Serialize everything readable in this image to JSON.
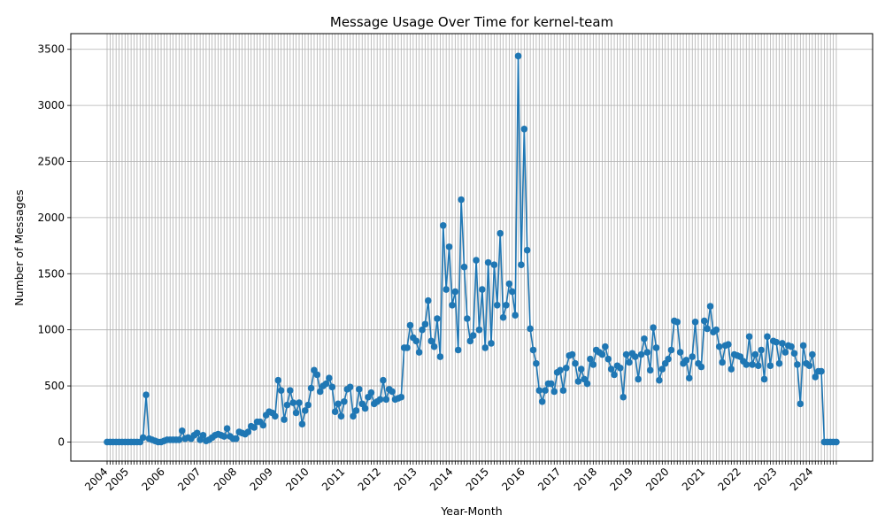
{
  "chart_data": {
    "type": "line",
    "title": "Message Usage Over Time for kernel-team",
    "xlabel": "Year-Month",
    "ylabel": "Number of Messages",
    "ylim": [
      -170,
      3640
    ],
    "yticks": [
      0,
      500,
      1000,
      1500,
      2000,
      2500,
      3000,
      3500
    ],
    "xtick_labels": [
      "2004",
      "2005",
      "2006",
      "2007",
      "2008",
      "2009",
      "2010",
      "2011",
      "2012",
      "2013",
      "2014",
      "2015",
      "2016",
      "2017",
      "2018",
      "2019",
      "2020",
      "2021",
      "2022",
      "2023",
      "2024"
    ],
    "grid": true,
    "legend": "none",
    "color": "#1f77b4",
    "start_year": 2004,
    "start_month": 6,
    "series": [
      {
        "values": [
          0,
          0,
          0,
          0,
          0,
          0,
          0,
          0,
          0,
          0,
          0,
          0,
          40,
          420,
          30,
          20,
          10,
          0,
          0,
          10,
          20,
          20,
          20,
          20,
          20,
          100,
          30,
          40,
          30,
          60,
          80,
          20,
          60,
          10,
          20,
          40,
          60,
          70,
          60,
          50,
          120,
          50,
          30,
          30,
          90,
          80,
          70,
          90,
          140,
          130,
          180,
          180,
          150,
          240,
          270,
          260,
          230,
          550,
          460,
          200,
          330,
          460,
          350,
          260,
          350,
          160,
          280,
          330,
          480,
          640,
          600,
          450,
          500,
          520,
          570,
          490,
          270,
          340,
          230,
          360,
          470,
          490,
          230,
          280,
          470,
          340,
          300,
          400,
          440,
          340,
          360,
          380,
          550,
          380,
          470,
          450,
          380,
          390,
          400,
          840,
          840,
          1040,
          930,
          900,
          800,
          1000,
          1050,
          1260,
          900,
          850,
          1100,
          760,
          1930,
          1360,
          1740,
          1220,
          1340,
          820,
          2160,
          1560,
          1100,
          900,
          950,
          1620,
          1000,
          1360,
          840,
          1600,
          880,
          1580,
          1220,
          1860,
          1110,
          1220,
          1410,
          1340,
          1130,
          3440,
          1580,
          2790,
          1710,
          1010,
          820,
          700,
          460,
          360,
          460,
          520,
          520,
          450,
          620,
          640,
          460,
          660,
          770,
          780,
          700,
          540,
          650,
          560,
          520,
          740,
          690,
          820,
          800,
          780,
          850,
          740,
          650,
          600,
          680,
          660,
          400,
          780,
          710,
          790,
          760,
          560,
          780,
          920,
          800,
          640,
          1020,
          840,
          550,
          650,
          700,
          740,
          820,
          1080,
          1070,
          800,
          700,
          730,
          570,
          760,
          1070,
          700,
          670,
          1080,
          1010,
          1210,
          980,
          1000,
          850,
          710,
          860,
          870,
          650,
          780,
          770,
          760,
          720,
          690,
          940,
          690,
          780,
          680,
          820,
          560,
          940,
          680,
          900,
          890,
          700,
          880,
          800,
          860,
          850,
          790,
          690,
          340,
          860,
          700,
          680,
          780,
          580,
          630,
          630,
          0,
          0,
          0,
          0,
          0
        ]
      }
    ]
  }
}
